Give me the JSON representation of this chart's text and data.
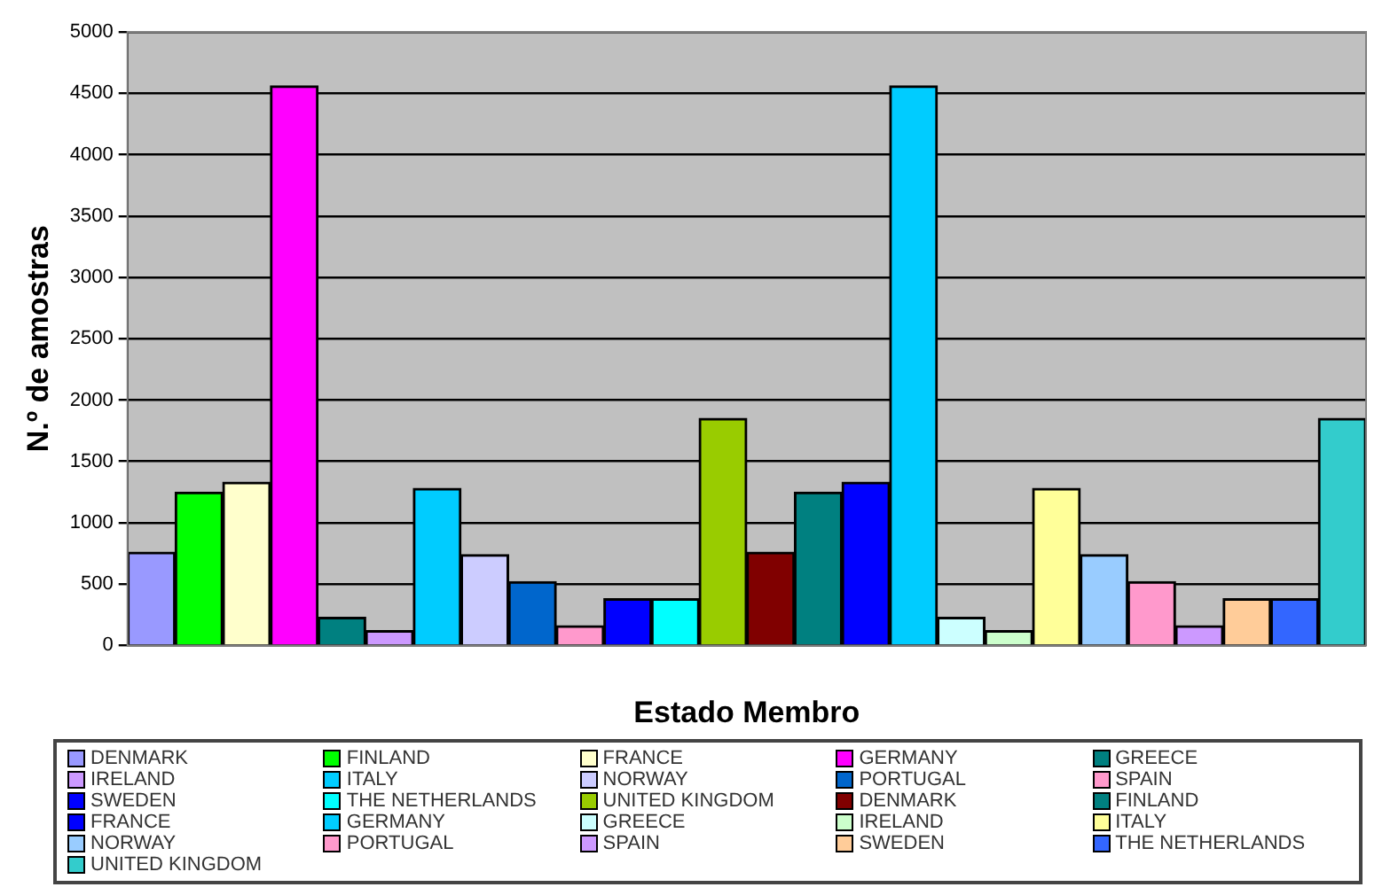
{
  "chart_data": {
    "type": "bar",
    "xlabel": "Estado Membro",
    "ylabel": "N.º de amostras",
    "categories": [
      null,
      null,
      null,
      null,
      null,
      null,
      null,
      null,
      null,
      null,
      null,
      null,
      null,
      null,
      null,
      null,
      null,
      null,
      null,
      null,
      null,
      null,
      null,
      null,
      null,
      null
    ],
    "ylim": [
      0,
      5000
    ],
    "yticks": [
      0,
      500,
      1000,
      1500,
      2000,
      2500,
      3000,
      3500,
      4000,
      4500,
      5000
    ],
    "grid": "y",
    "legend": "bottom",
    "series": [
      {
        "name": "DENMARK",
        "color": "#9999ff",
        "values": [
          760,
          null,
          null,
          null,
          null,
          null,
          null,
          null,
          null,
          null,
          null,
          null,
          null,
          null,
          null,
          null,
          null,
          null,
          null,
          null,
          null,
          null,
          null,
          null,
          null,
          null
        ]
      },
      {
        "name": "FINLAND",
        "color": "#00ff00",
        "values": [
          null,
          1250,
          null,
          null,
          null,
          null,
          null,
          null,
          null,
          null,
          null,
          null,
          null,
          null,
          null,
          null,
          null,
          null,
          null,
          null,
          null,
          null,
          null,
          null,
          null,
          null
        ]
      },
      {
        "name": "FRANCE",
        "color": "#ffffcc",
        "values": [
          null,
          null,
          1330,
          null,
          null,
          null,
          null,
          null,
          null,
          null,
          null,
          null,
          null,
          null,
          null,
          null,
          null,
          null,
          null,
          null,
          null,
          null,
          null,
          null,
          null,
          null
        ]
      },
      {
        "name": "GERMANY",
        "color": "#ff00ff",
        "values": [
          null,
          null,
          null,
          4560,
          null,
          null,
          null,
          null,
          null,
          null,
          null,
          null,
          null,
          null,
          null,
          null,
          null,
          null,
          null,
          null,
          null,
          null,
          null,
          null,
          null,
          null
        ]
      },
      {
        "name": "GREECE",
        "color": "#008080",
        "values": [
          null,
          null,
          null,
          null,
          230,
          null,
          null,
          null,
          null,
          null,
          null,
          null,
          null,
          null,
          null,
          null,
          null,
          null,
          null,
          null,
          null,
          null,
          null,
          null,
          null,
          null
        ]
      },
      {
        "name": "IRELAND",
        "color": "#cc99ff",
        "values": [
          null,
          null,
          null,
          null,
          null,
          120,
          null,
          null,
          null,
          null,
          null,
          null,
          null,
          null,
          null,
          null,
          null,
          null,
          null,
          null,
          null,
          null,
          null,
          null,
          null,
          null
        ]
      },
      {
        "name": "ITALY",
        "color": "#00ccff",
        "values": [
          null,
          null,
          null,
          null,
          null,
          null,
          1280,
          null,
          null,
          null,
          null,
          null,
          null,
          null,
          null,
          null,
          null,
          null,
          null,
          null,
          null,
          null,
          null,
          null,
          null,
          null
        ]
      },
      {
        "name": "NORWAY",
        "color": "#ccccff",
        "values": [
          null,
          null,
          null,
          null,
          null,
          null,
          null,
          740,
          null,
          null,
          null,
          null,
          null,
          null,
          null,
          null,
          null,
          null,
          null,
          null,
          null,
          null,
          null,
          null,
          null,
          null
        ]
      },
      {
        "name": "PORTUGAL",
        "color": "#0066cc",
        "values": [
          null,
          null,
          null,
          null,
          null,
          null,
          null,
          null,
          520,
          null,
          null,
          null,
          null,
          null,
          null,
          null,
          null,
          null,
          null,
          null,
          null,
          null,
          null,
          null,
          null,
          null
        ]
      },
      {
        "name": "SPAIN",
        "color": "#ff99cc",
        "values": [
          null,
          null,
          null,
          null,
          null,
          null,
          null,
          null,
          null,
          160,
          null,
          null,
          null,
          null,
          null,
          null,
          null,
          null,
          null,
          null,
          null,
          null,
          null,
          null,
          null,
          null
        ]
      },
      {
        "name": "SWEDEN",
        "color": "#0000ff",
        "values": [
          null,
          null,
          null,
          null,
          null,
          null,
          null,
          null,
          null,
          null,
          380,
          null,
          null,
          null,
          null,
          null,
          null,
          null,
          null,
          null,
          null,
          null,
          null,
          null,
          null,
          null
        ]
      },
      {
        "name": "THE NETHERLANDS",
        "color": "#00ffff",
        "values": [
          null,
          null,
          null,
          null,
          null,
          null,
          null,
          null,
          null,
          null,
          null,
          380,
          null,
          null,
          null,
          null,
          null,
          null,
          null,
          null,
          null,
          null,
          null,
          null,
          null,
          null
        ]
      },
      {
        "name": "UNITED KINGDOM",
        "color": "#99cc00",
        "values": [
          null,
          null,
          null,
          null,
          null,
          null,
          null,
          null,
          null,
          null,
          null,
          null,
          1850,
          null,
          null,
          null,
          null,
          null,
          null,
          null,
          null,
          null,
          null,
          null,
          null,
          null
        ]
      },
      {
        "name": "DENMARK",
        "color": "#800000",
        "values": [
          null,
          null,
          null,
          null,
          null,
          null,
          null,
          null,
          null,
          null,
          null,
          null,
          null,
          760,
          null,
          null,
          null,
          null,
          null,
          null,
          null,
          null,
          null,
          null,
          null,
          null
        ]
      },
      {
        "name": "FINLAND",
        "color": "#008080",
        "values": [
          null,
          null,
          null,
          null,
          null,
          null,
          null,
          null,
          null,
          null,
          null,
          null,
          null,
          null,
          1250,
          null,
          null,
          null,
          null,
          null,
          null,
          null,
          null,
          null,
          null,
          null
        ]
      },
      {
        "name": "FRANCE",
        "color": "#0000ff",
        "values": [
          null,
          null,
          null,
          null,
          null,
          null,
          null,
          null,
          null,
          null,
          null,
          null,
          null,
          null,
          null,
          1330,
          null,
          null,
          null,
          null,
          null,
          null,
          null,
          null,
          null,
          null
        ]
      },
      {
        "name": "GERMANY",
        "color": "#00ccff",
        "values": [
          null,
          null,
          null,
          null,
          null,
          null,
          null,
          null,
          null,
          null,
          null,
          null,
          null,
          null,
          null,
          null,
          4560,
          null,
          null,
          null,
          null,
          null,
          null,
          null,
          null,
          null
        ]
      },
      {
        "name": "GREECE",
        "color": "#ccffff",
        "values": [
          null,
          null,
          null,
          null,
          null,
          null,
          null,
          null,
          null,
          null,
          null,
          null,
          null,
          null,
          null,
          null,
          null,
          230,
          null,
          null,
          null,
          null,
          null,
          null,
          null,
          null
        ]
      },
      {
        "name": "IRELAND",
        "color": "#ccffcc",
        "values": [
          null,
          null,
          null,
          null,
          null,
          null,
          null,
          null,
          null,
          null,
          null,
          null,
          null,
          null,
          null,
          null,
          null,
          null,
          120,
          null,
          null,
          null,
          null,
          null,
          null,
          null
        ]
      },
      {
        "name": "ITALY",
        "color": "#ffff99",
        "values": [
          null,
          null,
          null,
          null,
          null,
          null,
          null,
          null,
          null,
          null,
          null,
          null,
          null,
          null,
          null,
          null,
          null,
          null,
          null,
          1280,
          null,
          null,
          null,
          null,
          null,
          null
        ]
      },
      {
        "name": "NORWAY",
        "color": "#99ccff",
        "values": [
          null,
          null,
          null,
          null,
          null,
          null,
          null,
          null,
          null,
          null,
          null,
          null,
          null,
          null,
          null,
          null,
          null,
          null,
          null,
          null,
          740,
          null,
          null,
          null,
          null,
          null
        ]
      },
      {
        "name": "PORTUGAL",
        "color": "#ff99cc",
        "values": [
          null,
          null,
          null,
          null,
          null,
          null,
          null,
          null,
          null,
          null,
          null,
          null,
          null,
          null,
          null,
          null,
          null,
          null,
          null,
          null,
          null,
          520,
          null,
          null,
          null,
          null
        ]
      },
      {
        "name": "SPAIN",
        "color": "#cc99ff",
        "values": [
          null,
          null,
          null,
          null,
          null,
          null,
          null,
          null,
          null,
          null,
          null,
          null,
          null,
          null,
          null,
          null,
          null,
          null,
          null,
          null,
          null,
          null,
          160,
          null,
          null,
          null
        ]
      },
      {
        "name": "SWEDEN",
        "color": "#ffcc99",
        "values": [
          null,
          null,
          null,
          null,
          null,
          null,
          null,
          null,
          null,
          null,
          null,
          null,
          null,
          null,
          null,
          null,
          null,
          null,
          null,
          null,
          null,
          null,
          null,
          380,
          null,
          null
        ]
      },
      {
        "name": "THE NETHERLANDS",
        "color": "#3366ff",
        "values": [
          null,
          null,
          null,
          null,
          null,
          null,
          null,
          null,
          null,
          null,
          null,
          null,
          null,
          null,
          null,
          null,
          null,
          null,
          null,
          null,
          null,
          null,
          null,
          null,
          380,
          null
        ]
      },
      {
        "name": "UNITED KINGDOM",
        "color": "#33cccc",
        "values": [
          null,
          null,
          null,
          null,
          null,
          null,
          null,
          null,
          null,
          null,
          null,
          null,
          null,
          null,
          null,
          null,
          null,
          null,
          null,
          null,
          null,
          null,
          null,
          null,
          null,
          1850
        ]
      }
    ]
  }
}
